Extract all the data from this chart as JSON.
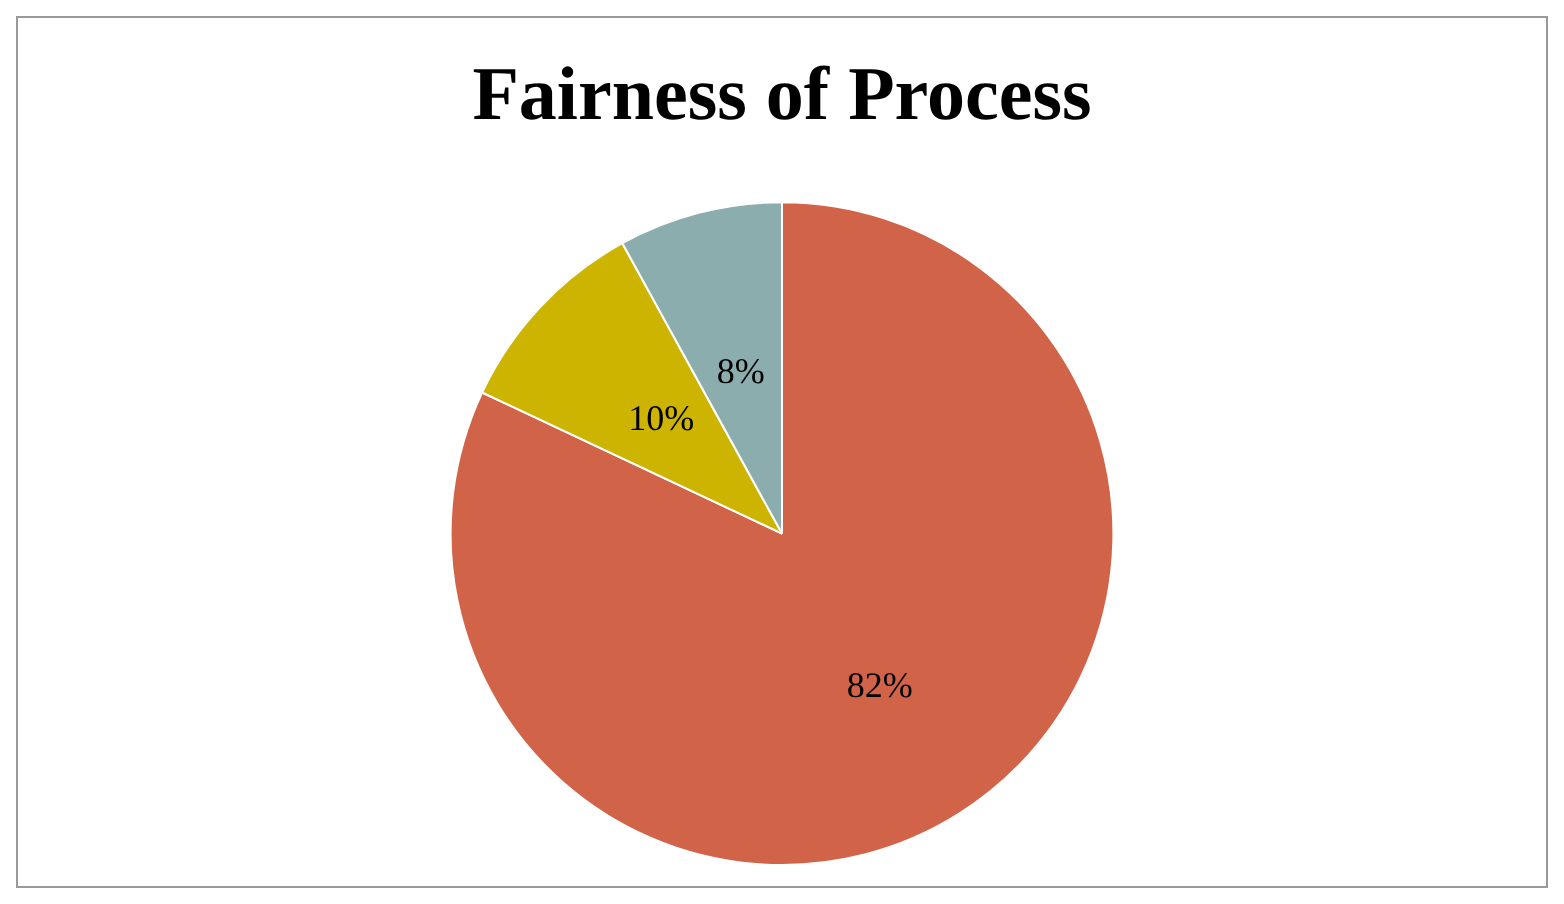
{
  "chart_data": {
    "type": "pie",
    "title": "Fairness of Process",
    "categories": [
      null,
      null,
      null
    ],
    "values": [
      82,
      10,
      8
    ],
    "colors": [
      "#d16349",
      "#ccb400",
      "#8cadae"
    ],
    "value_labels": [
      "82%",
      "10%",
      "8%"
    ],
    "legend": false
  }
}
